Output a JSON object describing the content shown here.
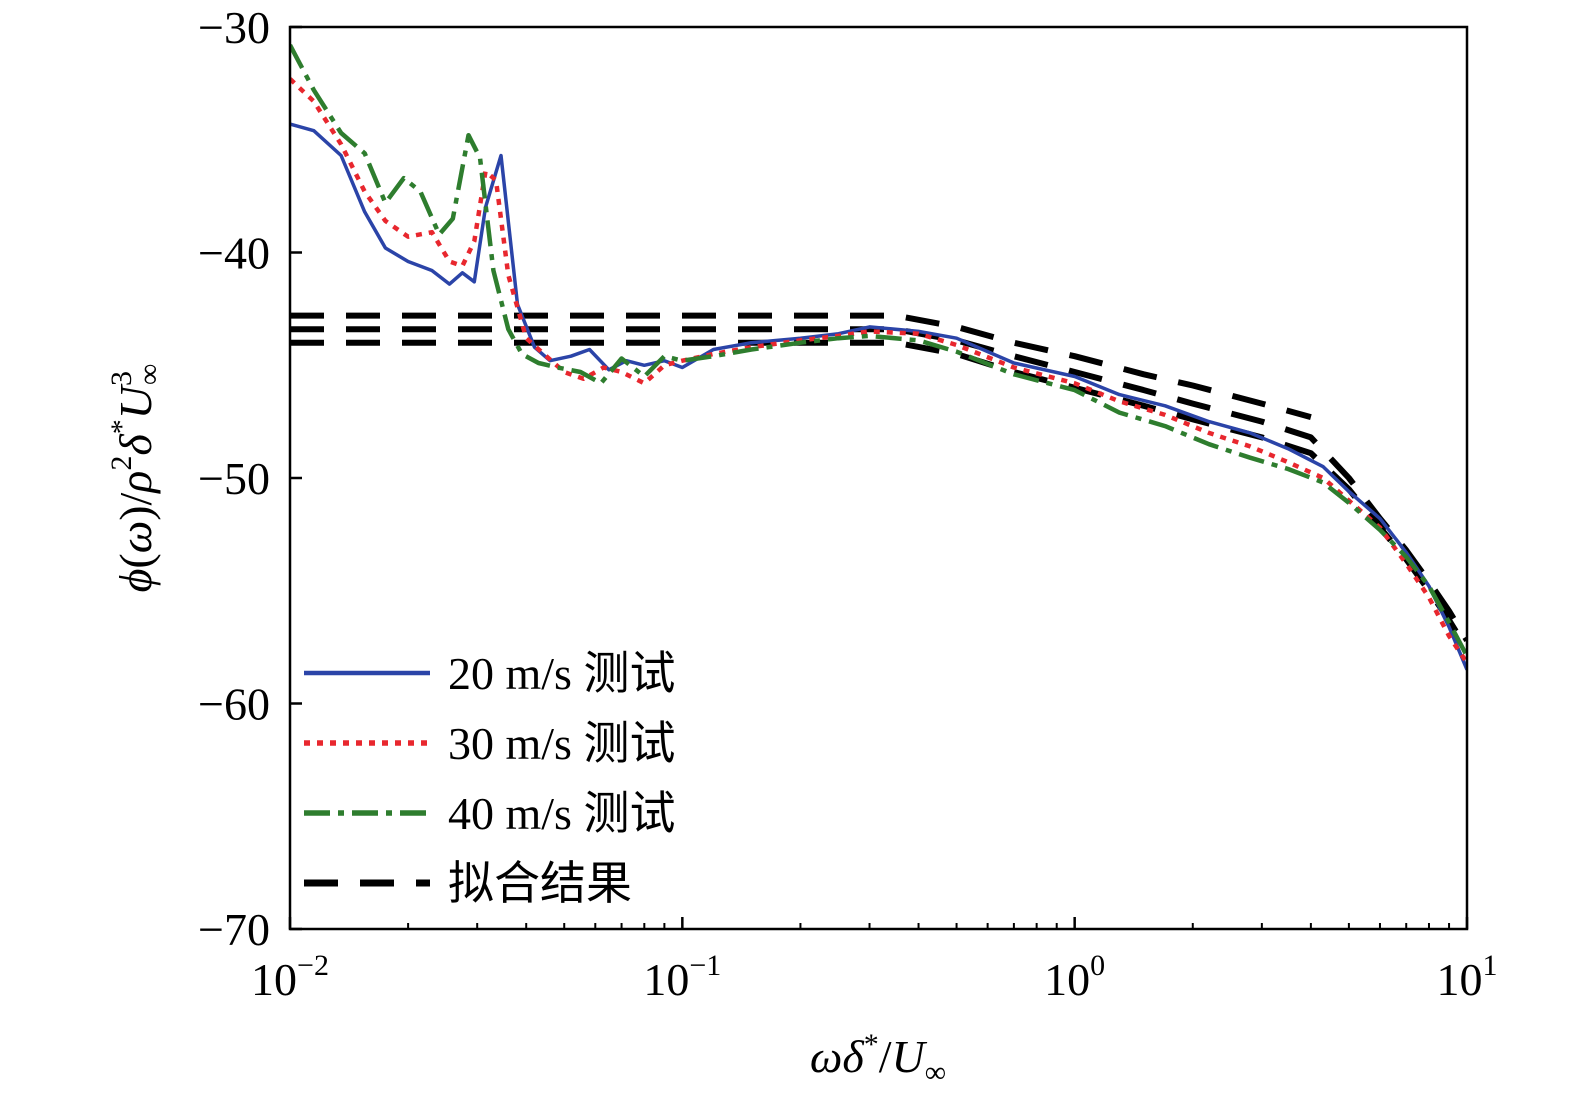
{
  "chart_data": {
    "type": "line",
    "xscale": "log",
    "xlim": [
      0.01,
      10
    ],
    "ylim": [
      -70,
      -30
    ],
    "xticks": [
      {
        "value": 0.01,
        "base": "10",
        "exp": "−2"
      },
      {
        "value": 0.1,
        "base": "10",
        "exp": "−1"
      },
      {
        "value": 1,
        "base": "10",
        "exp": "0"
      },
      {
        "value": 10,
        "base": "10",
        "exp": "1"
      }
    ],
    "yticks": [
      {
        "value": -30,
        "label": "−30"
      },
      {
        "value": -40,
        "label": "−40"
      },
      {
        "value": -50,
        "label": "−50"
      },
      {
        "value": -60,
        "label": "−60"
      },
      {
        "value": -70,
        "label": "−70"
      }
    ],
    "xlabel": "ωδ*/U∞",
    "ylabel": "ϕ(ω)/ρ²δ*U∞³",
    "grid": false,
    "legend_position": "bottom-left",
    "series": [
      {
        "name": "20 m/s 测试",
        "color": "#2b44a8",
        "dash": "solid",
        "x": [
          0.01,
          0.0115,
          0.0135,
          0.0155,
          0.0175,
          0.02,
          0.023,
          0.0255,
          0.0275,
          0.0295,
          0.0315,
          0.0345,
          0.038,
          0.042,
          0.046,
          0.052,
          0.058,
          0.065,
          0.072,
          0.08,
          0.09,
          0.1,
          0.12,
          0.15,
          0.2,
          0.25,
          0.3,
          0.4,
          0.5,
          0.7,
          1.0,
          1.3,
          1.7,
          2.2,
          2.8,
          3.5,
          4.3,
          5.0,
          6.0,
          7.0,
          8.0,
          9.0,
          10.0
        ],
        "values": [
          -34.3,
          -34.6,
          -35.7,
          -38.2,
          -39.8,
          -40.4,
          -40.8,
          -41.4,
          -40.9,
          -41.3,
          -38.0,
          -35.7,
          -42.3,
          -44.2,
          -44.8,
          -44.6,
          -44.3,
          -45.2,
          -44.8,
          -45.0,
          -44.8,
          -45.1,
          -44.3,
          -44.0,
          -43.8,
          -43.6,
          -43.3,
          -43.5,
          -43.8,
          -44.9,
          -45.5,
          -46.3,
          -46.8,
          -47.5,
          -48.0,
          -48.7,
          -49.5,
          -50.6,
          -51.8,
          -53.3,
          -54.8,
          -56.6,
          -58.5
        ]
      },
      {
        "name": "30 m/s 测试",
        "color": "#e8272e",
        "dash": "dotted",
        "x": [
          0.01,
          0.0115,
          0.0135,
          0.0155,
          0.0175,
          0.02,
          0.023,
          0.0255,
          0.0275,
          0.0295,
          0.0315,
          0.0335,
          0.036,
          0.04,
          0.045,
          0.05,
          0.056,
          0.063,
          0.07,
          0.08,
          0.09,
          0.1,
          0.12,
          0.15,
          0.2,
          0.25,
          0.3,
          0.4,
          0.5,
          0.7,
          1.0,
          1.3,
          1.7,
          2.2,
          2.8,
          3.5,
          4.3,
          5.0,
          6.0,
          7.0,
          8.0,
          9.0,
          10.0
        ],
        "values": [
          -32.3,
          -33.3,
          -35.2,
          -37.3,
          -38.6,
          -39.3,
          -39.1,
          -40.4,
          -40.6,
          -39.5,
          -36.4,
          -36.8,
          -41.0,
          -43.8,
          -44.6,
          -45.3,
          -45.6,
          -45.1,
          -45.3,
          -45.8,
          -45.0,
          -44.8,
          -44.5,
          -44.2,
          -43.9,
          -43.7,
          -43.5,
          -43.6,
          -44.1,
          -45.1,
          -45.8,
          -46.6,
          -47.2,
          -48.0,
          -48.6,
          -49.3,
          -50.0,
          -51.0,
          -52.2,
          -53.8,
          -55.3,
          -57.0,
          -58.2
        ]
      },
      {
        "name": "40 m/s 测试",
        "color": "#2e7d2e",
        "dash": "dashdot",
        "x": [
          0.01,
          0.0115,
          0.0135,
          0.0155,
          0.0175,
          0.0195,
          0.0215,
          0.024,
          0.026,
          0.0285,
          0.0305,
          0.033,
          0.036,
          0.039,
          0.043,
          0.048,
          0.055,
          0.062,
          0.07,
          0.08,
          0.09,
          0.1,
          0.12,
          0.15,
          0.2,
          0.25,
          0.3,
          0.4,
          0.5,
          0.7,
          1.0,
          1.3,
          1.7,
          2.2,
          2.8,
          3.5,
          4.3,
          5.0,
          6.0,
          7.0,
          8.0,
          9.0,
          10.0
        ],
        "values": [
          -30.8,
          -32.8,
          -34.7,
          -35.6,
          -37.8,
          -36.7,
          -37.3,
          -39.2,
          -38.5,
          -34.8,
          -35.8,
          -40.8,
          -43.4,
          -44.5,
          -44.9,
          -45.1,
          -45.3,
          -45.8,
          -44.7,
          -45.5,
          -44.6,
          -44.8,
          -44.6,
          -44.3,
          -44.0,
          -43.8,
          -43.7,
          -43.9,
          -44.4,
          -45.4,
          -46.1,
          -47.1,
          -47.7,
          -48.5,
          -49.1,
          -49.6,
          -50.2,
          -51.1,
          -52.3,
          -53.5,
          -54.8,
          -56.4,
          -57.9
        ]
      },
      {
        "name": "拟合结果",
        "color": "#000000",
        "dash": "dashed",
        "x": [
          0.01,
          0.02,
          0.04,
          0.08,
          0.15,
          0.25,
          0.35,
          0.5,
          0.7,
          1.0,
          1.5,
          2.0,
          3.0,
          4.0
        ],
        "values": [
          -42.8,
          -42.8,
          -42.8,
          -42.8,
          -42.8,
          -42.8,
          -42.8,
          -43.3,
          -44.0,
          -44.6,
          -45.4,
          -45.9,
          -46.7,
          -47.3
        ]
      },
      {
        "name": "",
        "color": "#000000",
        "dash": "dashed",
        "x": [
          0.01,
          0.02,
          0.04,
          0.08,
          0.15,
          0.25,
          0.35,
          0.5,
          0.7,
          1.0,
          1.5,
          2.0,
          3.0,
          4.0,
          5.0,
          6.0,
          7.0,
          8.0,
          9.0,
          10.0
        ],
        "values": [
          -43.4,
          -43.4,
          -43.4,
          -43.4,
          -43.4,
          -43.4,
          -43.4,
          -43.9,
          -44.6,
          -45.3,
          -46.1,
          -46.7,
          -47.5,
          -48.2,
          -50.0,
          -51.8,
          -53.2,
          -54.6,
          -55.9,
          -57.2
        ]
      },
      {
        "name": "",
        "color": "#000000",
        "dash": "dashed",
        "x": [
          0.01,
          0.02,
          0.04,
          0.08,
          0.15,
          0.25,
          0.35,
          0.5,
          0.7,
          1.0,
          1.5,
          2.0,
          3.0,
          4.0,
          5.0,
          6.0,
          7.0,
          8.0,
          9.0,
          10.0
        ],
        "values": [
          -44.0,
          -44.0,
          -44.0,
          -44.0,
          -44.0,
          -44.0,
          -44.0,
          -44.5,
          -45.3,
          -46.0,
          -46.8,
          -47.4,
          -48.2,
          -48.9,
          -50.5,
          -52.2,
          -53.6,
          -55.0,
          -56.3,
          -57.6
        ]
      }
    ]
  }
}
